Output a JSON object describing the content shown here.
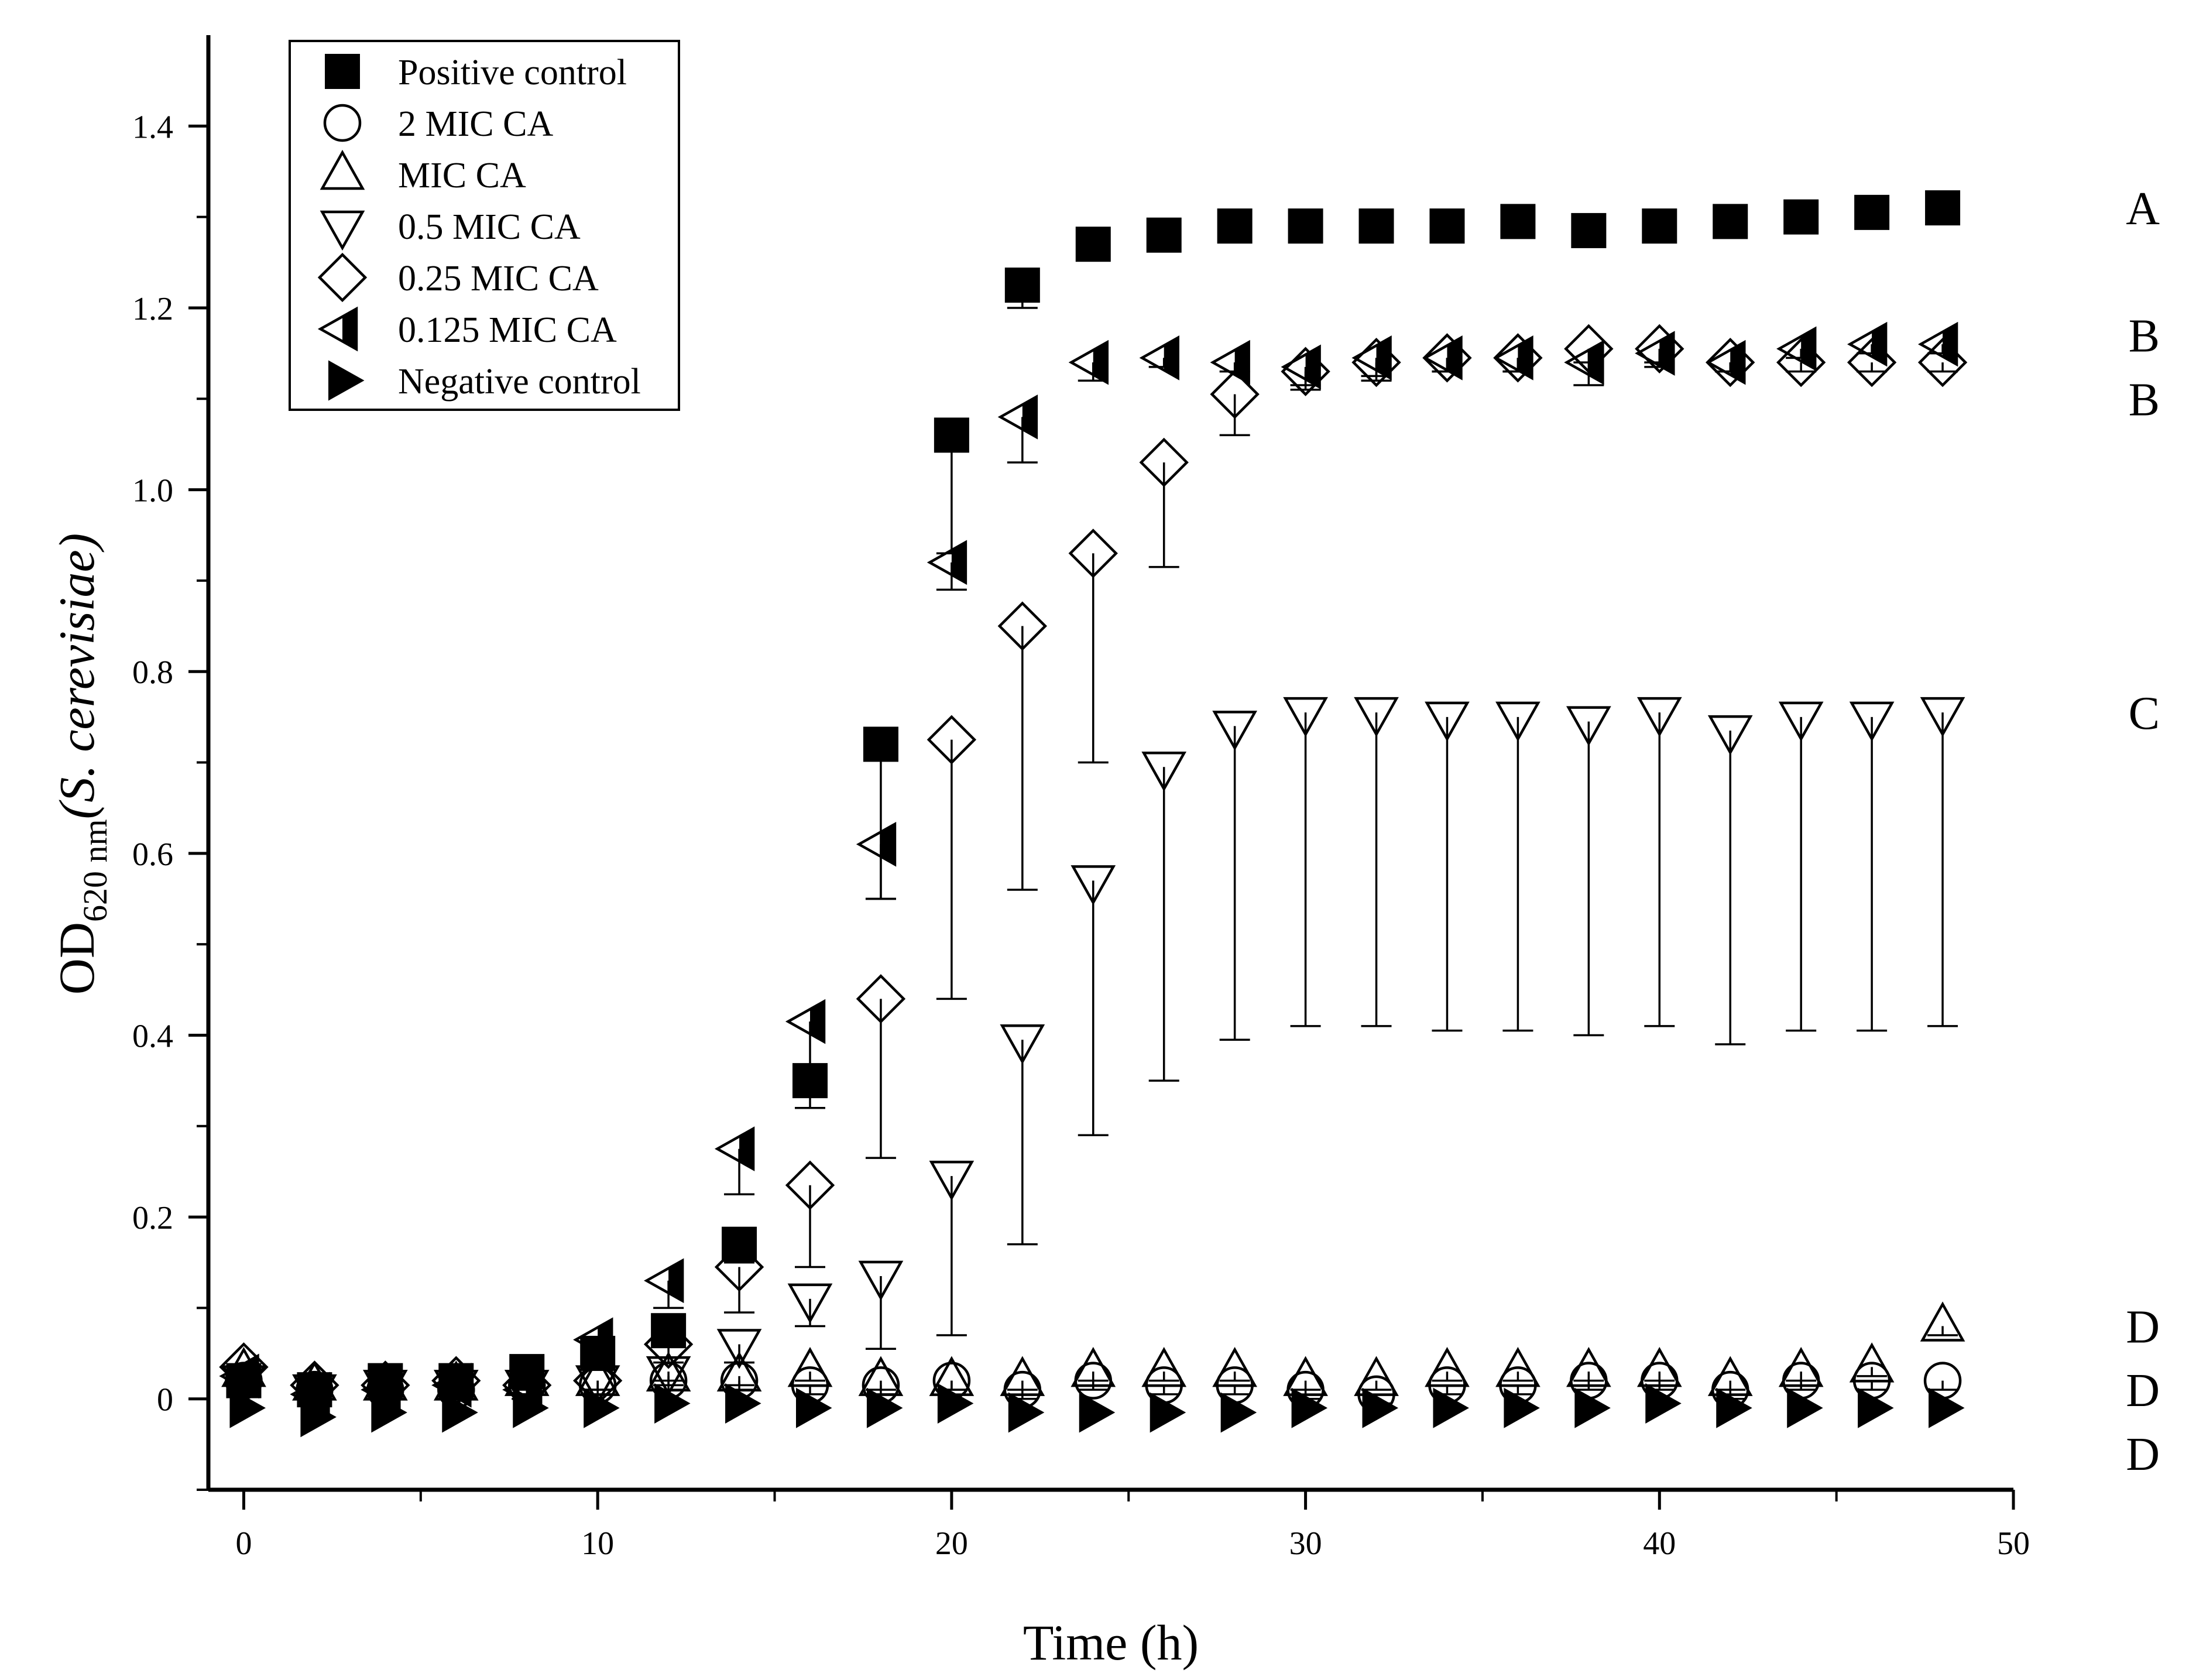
{
  "chart_data": {
    "type": "scatter",
    "title": "",
    "xlabel": "Time (h)",
    "ylabel": {
      "main": "OD",
      "subscript": "620 nm",
      "species": "(S. cerevisiae)"
    },
    "xlim": [
      -1,
      50
    ],
    "ylim": [
      -0.1,
      1.5
    ],
    "xticks": [
      0,
      10,
      20,
      30,
      40,
      50
    ],
    "yticks": [
      0,
      0.2,
      0.4,
      0.6,
      0.8,
      1.0,
      1.2,
      1.4
    ],
    "ytick_labels": [
      "0",
      "0.2",
      "0.4",
      "0.6",
      "0.8",
      "1.0",
      "1.2",
      "1.4"
    ],
    "legend_position": "top-left",
    "x": [
      0,
      2,
      4,
      6,
      8,
      10,
      12,
      14,
      16,
      18,
      20,
      22,
      24,
      26,
      28,
      30,
      32,
      34,
      36,
      38,
      40,
      42,
      44,
      46,
      48
    ],
    "series": [
      {
        "name": "Positive control",
        "marker": "square-filled",
        "values": [
          0.02,
          0.01,
          0.02,
          0.02,
          0.03,
          0.05,
          0.075,
          0.17,
          0.35,
          0.72,
          1.06,
          1.225,
          1.27,
          1.28,
          1.29,
          1.29,
          1.29,
          1.29,
          1.295,
          1.285,
          1.29,
          1.295,
          1.3,
          1.305,
          1.31
        ],
        "errors": [
          0.01,
          0.01,
          0.01,
          0.01,
          0.01,
          0.01,
          0.015,
          0.02,
          0.03,
          0.17,
          0.13,
          0.025,
          0.01,
          0.01,
          0.01,
          0.01,
          0.01,
          0.01,
          0.01,
          0.01,
          0.01,
          0.01,
          0.01,
          0.01,
          0.01
        ]
      },
      {
        "name": "2 MIC CA",
        "marker": "circle-open",
        "values": [
          0.02,
          0.01,
          0.01,
          0.01,
          0.015,
          0.015,
          0.02,
          0.02,
          0.015,
          0.015,
          0.02,
          0.01,
          0.02,
          0.015,
          0.015,
          0.01,
          0.005,
          0.015,
          0.015,
          0.02,
          0.02,
          0.01,
          0.02,
          0.02,
          0.02
        ],
        "errors": [
          0.01,
          0.01,
          0.01,
          0.01,
          0.01,
          0.01,
          0.01,
          0.01,
          0.01,
          0.01,
          0.01,
          0.01,
          0.01,
          0.01,
          0.01,
          0.01,
          0.01,
          0.01,
          0.01,
          0.01,
          0.01,
          0.01,
          0.01,
          0.01,
          0.01
        ]
      },
      {
        "name": "MIC CA",
        "marker": "triangle-up-open",
        "values": [
          0.03,
          0.015,
          0.015,
          0.015,
          0.02,
          0.02,
          0.025,
          0.025,
          0.03,
          0.02,
          0.02,
          0.02,
          0.03,
          0.03,
          0.03,
          0.02,
          0.02,
          0.03,
          0.03,
          0.03,
          0.03,
          0.02,
          0.03,
          0.035,
          0.08
        ],
        "errors": [
          0.01,
          0.01,
          0.01,
          0.01,
          0.01,
          0.01,
          0.01,
          0.01,
          0.01,
          0.01,
          0.01,
          0.01,
          0.01,
          0.01,
          0.01,
          0.01,
          0.01,
          0.01,
          0.01,
          0.01,
          0.01,
          0.01,
          0.01,
          0.01,
          0.01
        ]
      },
      {
        "name": "0.5 MIC CA",
        "marker": "triangle-down-open",
        "values": [
          0.02,
          0.01,
          0.015,
          0.015,
          0.015,
          0.02,
          0.03,
          0.06,
          0.11,
          0.135,
          0.245,
          0.395,
          0.57,
          0.695,
          0.74,
          0.755,
          0.755,
          0.75,
          0.75,
          0.745,
          0.755,
          0.735,
          0.75,
          0.75,
          0.755
        ],
        "errors": [
          0.01,
          0.01,
          0.01,
          0.01,
          0.01,
          0.01,
          0.01,
          0.02,
          0.03,
          0.08,
          0.175,
          0.225,
          0.28,
          0.345,
          0.345,
          0.345,
          0.345,
          0.345,
          0.345,
          0.345,
          0.345,
          0.345,
          0.345,
          0.345,
          0.345
        ]
      },
      {
        "name": "0.25 MIC CA",
        "marker": "diamond-open",
        "values": [
          0.035,
          0.015,
          0.015,
          0.02,
          0.015,
          0.02,
          0.06,
          0.145,
          0.235,
          0.44,
          0.725,
          0.85,
          0.93,
          1.03,
          1.105,
          1.13,
          1.14,
          1.145,
          1.145,
          1.155,
          1.155,
          1.14,
          1.14,
          1.14,
          1.14
        ],
        "errors": [
          0.01,
          0.01,
          0.01,
          0.01,
          0.01,
          0.01,
          0.02,
          0.05,
          0.09,
          0.175,
          0.285,
          0.29,
          0.23,
          0.115,
          0.045,
          0.02,
          0.02,
          0.015,
          0.015,
          0.015,
          0.015,
          0.01,
          0.01,
          0.01,
          0.01
        ]
      },
      {
        "name": "0.125 MIC CA",
        "marker": "triangle-left-half",
        "values": [
          0.025,
          0.005,
          0.01,
          0.015,
          0.01,
          0.065,
          0.13,
          0.275,
          0.415,
          0.61,
          0.92,
          1.08,
          1.14,
          1.145,
          1.14,
          1.135,
          1.145,
          1.145,
          1.145,
          1.14,
          1.15,
          1.14,
          1.155,
          1.16,
          1.16
        ],
        "errors": [
          0.01,
          0.01,
          0.01,
          0.01,
          0.01,
          0.015,
          0.03,
          0.05,
          0.06,
          0.06,
          0.03,
          0.05,
          0.02,
          0.01,
          0.01,
          0.02,
          0.02,
          0.015,
          0.015,
          0.025,
          0.015,
          0.01,
          0.01,
          0.01,
          0.01
        ]
      },
      {
        "name": "Negative control",
        "marker": "triangle-right-filled",
        "values": [
          -0.01,
          -0.02,
          -0.015,
          -0.015,
          -0.01,
          -0.01,
          -0.005,
          -0.005,
          -0.01,
          -0.01,
          -0.005,
          -0.015,
          -0.015,
          -0.015,
          -0.015,
          -0.01,
          -0.01,
          -0.01,
          -0.01,
          -0.01,
          -0.005,
          -0.01,
          -0.01,
          -0.01,
          -0.01
        ],
        "errors": [
          0,
          0,
          0,
          0,
          0,
          0,
          0,
          0,
          0,
          0,
          0,
          0,
          0,
          0,
          0,
          0,
          0,
          0,
          0,
          0,
          0,
          0,
          0,
          0,
          0
        ]
      }
    ],
    "group_annotations": [
      {
        "label": "A",
        "y": 1.31
      },
      {
        "label": "B",
        "y": 1.17
      },
      {
        "label": "B",
        "y": 1.1
      },
      {
        "label": "C",
        "y": 0.755
      },
      {
        "label": "D",
        "y": 0.08
      },
      {
        "label": "D",
        "y": 0.01
      },
      {
        "label": "D",
        "y": -0.06
      }
    ]
  }
}
